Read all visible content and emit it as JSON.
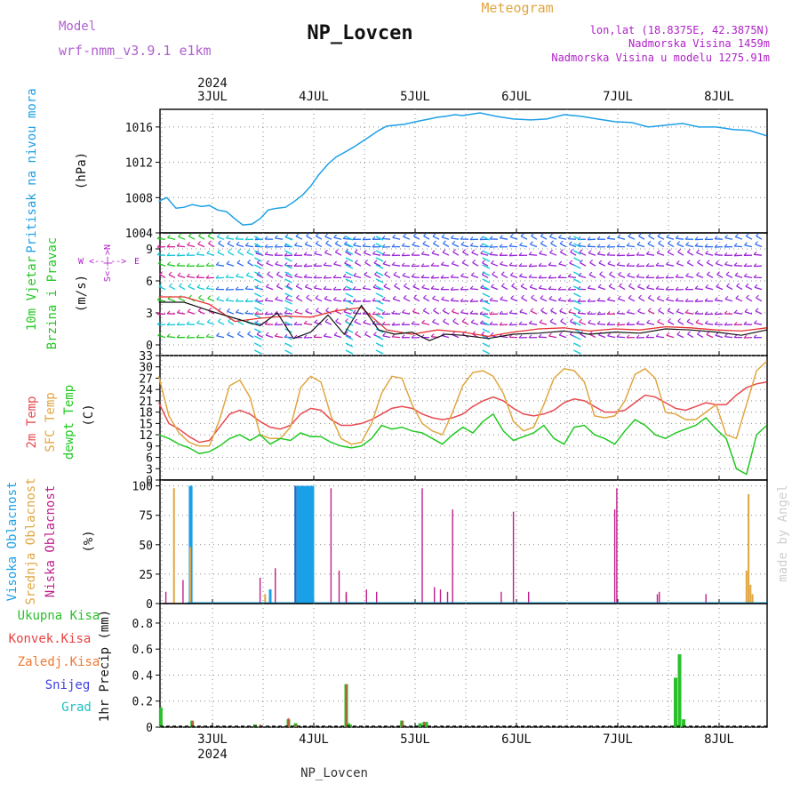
{
  "header": {
    "model_label": "Model",
    "model_name": "wrf-nmm_v3.9.1 e1km",
    "station": "NP_Lovcen",
    "meteogram": "Meteogram",
    "lonlat": "lon,lat (18.8375E, 42.3875N)",
    "altitude": "Nadmorska Visina 1459m",
    "model_altitude": "Nadmorska Visina u modelu 1275.91m",
    "year": "2024",
    "footer_station": "NP_Lovcen",
    "watermark": "made by Angel"
  },
  "colors": {
    "pressure": "#1ea0e6",
    "wind_green": "#22c822",
    "wind_cyan": "#12c8d8",
    "wind_blue": "#2a6bf0",
    "wind_violet": "#9a22d8",
    "wind_magenta": "#d0209a",
    "gust_red": "#e83030",
    "temp_2m": "#e84a50",
    "temp_sfc": "#e0a640",
    "temp_dew": "#22c822",
    "cloud_high": "#1aa0e6",
    "cloud_mid": "#e0a640",
    "cloud_low": "#c0208c",
    "precip_total": "#2ac02a",
    "precip_conv": "#e84040",
    "precip_frozen": "#f07830",
    "precip_snow": "#4040e0",
    "precip_graupel": "#20c0c0",
    "model_label": "#b060d0",
    "title_gold": "#e0a640",
    "info_violet": "#b020c8"
  },
  "chart_data": [
    {
      "type": "line",
      "panel": "pressure",
      "ylabel_name": "Pritisak na nivou mora",
      "ylabel_unit": "(hPa)",
      "x_days": [
        "3JUL",
        "4JUL",
        "5JUL",
        "6JUL",
        "7JUL",
        "8JUL"
      ],
      "x_year": "2024",
      "ylim": [
        1004,
        1018
      ],
      "yticks": [
        1004,
        1008,
        1012,
        1016
      ],
      "grid": true,
      "series": [
        {
          "x": [
            0,
            0.08,
            0.17,
            0.25,
            0.33,
            0.42,
            0.5,
            0.58,
            0.67,
            0.75,
            0.83,
            0.92,
            1.0,
            1.08,
            1.17,
            1.25,
            1.33,
            1.42,
            1.5,
            1.58,
            1.67,
            1.75,
            1.83,
            1.92,
            2.0,
            2.08,
            2.17,
            2.25,
            2.33,
            2.42,
            2.5,
            2.58,
            2.67,
            2.75,
            2.83,
            2.92,
            3.0,
            3.17,
            3.33,
            3.5,
            3.67,
            3.83,
            4.0,
            4.17,
            4.33,
            4.5,
            4.67,
            4.83,
            5.0,
            5.17,
            5.33,
            5.5,
            5.67,
            5.83,
            6.0
          ],
          "values": [
            1007.6,
            1008.0,
            1006.8,
            1006.9,
            1007.2,
            1007.0,
            1007.1,
            1006.6,
            1006.4,
            1005.6,
            1004.9,
            1005.0,
            1005.6,
            1006.6,
            1006.8,
            1006.9,
            1007.5,
            1008.3,
            1009.3,
            1010.6,
            1011.8,
            1012.6,
            1013.1,
            1013.7,
            1014.3,
            1014.9,
            1015.6,
            1016.1,
            1016.2,
            1016.3,
            1016.5,
            1016.7,
            1016.9,
            1017.1,
            1017.2,
            1017.4,
            1017.3,
            1017.6,
            1017.2,
            1016.9,
            1016.8,
            1016.9,
            1017.4,
            1017.2,
            1016.9,
            1016.6,
            1016.5,
            1016.0,
            1016.2,
            1016.4,
            1016.0,
            1016.0,
            1015.7,
            1015.6,
            1015.0
          ]
        }
      ]
    },
    {
      "type": "line",
      "panel": "wind",
      "ylabel_name1": "10m Vjetar",
      "ylabel_name2": "Brzina i Pravac",
      "ylabel_unit": "(m/s)",
      "compass_w": "W",
      "compass_e": "E",
      "compass_mid": "<--|-->",
      "compass_vert": "S<-|->N",
      "ylim": [
        -1,
        10.5
      ],
      "yticks": [
        0,
        3,
        6,
        9
      ],
      "grid": true,
      "series": [
        {
          "name": "10m wind speed",
          "x": [
            0,
            0.25,
            0.5,
            0.75,
            1.0,
            1.17,
            1.33,
            1.5,
            1.67,
            1.83,
            2.0,
            2.17,
            2.33,
            2.5,
            2.67,
            2.83,
            3.0,
            3.25,
            3.5,
            3.75,
            4.0,
            4.25,
            4.5,
            4.75,
            5.0,
            5.25,
            5.5,
            5.75,
            6.0
          ],
          "values": [
            4.0,
            4.0,
            3.2,
            2.5,
            1.8,
            3.0,
            0.6,
            1.2,
            2.8,
            1.0,
            3.7,
            1.4,
            1.0,
            1.2,
            0.4,
            1.0,
            0.9,
            0.6,
            1.0,
            1.1,
            1.3,
            1.0,
            1.2,
            1.1,
            1.5,
            1.4,
            1.2,
            0.9,
            1.4
          ]
        },
        {
          "name": "gust",
          "x": [
            0,
            0.25,
            0.5,
            0.75,
            1.0,
            1.25,
            1.5,
            1.75,
            2.0,
            2.25,
            2.5,
            2.75,
            3.0,
            3.25,
            3.5,
            3.75,
            4.0,
            4.25,
            4.5,
            4.75,
            5.0,
            5.25,
            5.5,
            5.75,
            6.0
          ],
          "values": [
            4.5,
            4.5,
            3.8,
            2.2,
            2.5,
            2.7,
            2.6,
            3.2,
            3.5,
            1.4,
            1.0,
            1.4,
            1.2,
            0.8,
            1.2,
            1.5,
            1.6,
            1.3,
            1.5,
            1.4,
            1.7,
            1.6,
            1.4,
            1.3,
            1.6
          ]
        }
      ]
    },
    {
      "type": "line",
      "panel": "temperature",
      "ylabel_2m": "2m Temp",
      "ylabel_sfc": "SFC Temp",
      "ylabel_dew": "dewpt Temp",
      "ylabel_unit": "(C)",
      "ylim": [
        0,
        33
      ],
      "yticks": [
        0,
        3,
        6,
        9,
        12,
        15,
        18,
        21,
        24,
        27,
        30,
        33
      ],
      "grid": true,
      "series": [
        {
          "name": "2m Temp",
          "x": [
            0,
            0.1,
            0.2,
            0.3,
            0.4,
            0.5,
            0.6,
            0.7,
            0.8,
            0.9,
            1.0,
            1.1,
            1.2,
            1.3,
            1.4,
            1.5,
            1.6,
            1.7,
            1.8,
            1.9,
            2.0,
            2.1,
            2.2,
            2.3,
            2.4,
            2.5,
            2.6,
            2.7,
            2.8,
            2.9,
            3.0,
            3.1,
            3.2,
            3.3,
            3.4,
            3.5,
            3.6,
            3.7,
            3.8,
            3.9,
            4.0,
            4.1,
            4.2,
            4.3,
            4.4,
            4.5,
            4.6,
            4.7,
            4.8,
            4.9,
            5.0,
            5.1,
            5.2,
            5.3,
            5.4,
            5.5,
            5.6,
            5.7,
            5.8,
            5.9,
            6.0
          ],
          "values": [
            20.5,
            15.0,
            13.5,
            11.5,
            10.0,
            10.5,
            14.0,
            17.5,
            18.5,
            17.5,
            15.5,
            14.0,
            13.5,
            14.5,
            17.5,
            19.0,
            18.5,
            16.0,
            14.5,
            14.5,
            15.0,
            16.0,
            17.5,
            19.0,
            19.5,
            19.0,
            17.5,
            16.5,
            16.0,
            16.5,
            17.5,
            19.5,
            21.0,
            22.0,
            21.0,
            19.0,
            17.5,
            17.0,
            17.5,
            18.5,
            20.5,
            21.5,
            21.0,
            19.5,
            18.0,
            18.0,
            18.5,
            20.5,
            22.5,
            22.0,
            20.5,
            19.0,
            18.5,
            19.5,
            20.5,
            20.0,
            20.0,
            22.5,
            24.5,
            25.5,
            26.0
          ]
        },
        {
          "name": "SFC Temp",
          "x": [
            0,
            0.1,
            0.2,
            0.3,
            0.4,
            0.5,
            0.6,
            0.7,
            0.8,
            0.9,
            1.0,
            1.1,
            1.2,
            1.3,
            1.4,
            1.5,
            1.6,
            1.7,
            1.8,
            1.9,
            2.0,
            2.1,
            2.2,
            2.3,
            2.4,
            2.5,
            2.6,
            2.7,
            2.8,
            2.9,
            3.0,
            3.1,
            3.2,
            3.3,
            3.4,
            3.5,
            3.6,
            3.7,
            3.8,
            3.9,
            4.0,
            4.1,
            4.2,
            4.3,
            4.4,
            4.5,
            4.6,
            4.7,
            4.8,
            4.9,
            5.0,
            5.1,
            5.2,
            5.3,
            5.4,
            5.5,
            5.6,
            5.7,
            5.8,
            5.9,
            6.0
          ],
          "values": [
            27.5,
            17.0,
            12.5,
            10.0,
            9.0,
            9.0,
            16.0,
            25.0,
            26.5,
            22.0,
            12.0,
            11.0,
            11.0,
            14.0,
            24.5,
            27.5,
            26.0,
            17.0,
            11.0,
            9.5,
            10.0,
            15.0,
            23.0,
            27.5,
            27.0,
            20.0,
            15.0,
            13.0,
            12.0,
            18.0,
            25.0,
            28.5,
            29.0,
            27.5,
            23.0,
            15.5,
            13.0,
            14.0,
            20.0,
            27.0,
            29.5,
            29.0,
            26.0,
            17.0,
            16.5,
            17.0,
            21.0,
            28.0,
            29.5,
            27.0,
            18.0,
            17.5,
            16.0,
            16.0,
            18.0,
            20.0,
            12.0,
            11.0,
            20.0,
            29.0,
            31.5
          ]
        },
        {
          "name": "dewpt Temp",
          "x": [
            0,
            0.1,
            0.2,
            0.3,
            0.4,
            0.5,
            0.6,
            0.7,
            0.8,
            0.9,
            1.0,
            1.1,
            1.2,
            1.3,
            1.4,
            1.5,
            1.6,
            1.7,
            1.8,
            1.9,
            2.0,
            2.1,
            2.2,
            2.3,
            2.4,
            2.5,
            2.6,
            2.7,
            2.8,
            2.9,
            3.0,
            3.1,
            3.2,
            3.3,
            3.4,
            3.5,
            3.6,
            3.7,
            3.8,
            3.9,
            4.0,
            4.1,
            4.2,
            4.3,
            4.4,
            4.5,
            4.6,
            4.7,
            4.8,
            4.9,
            5.0,
            5.1,
            5.2,
            5.3,
            5.4,
            5.5,
            5.6,
            5.7,
            5.8,
            5.9,
            6.0
          ],
          "values": [
            12.0,
            11.0,
            9.5,
            8.5,
            7.0,
            7.5,
            9.0,
            11.0,
            12.0,
            10.5,
            12.0,
            9.5,
            11.0,
            10.5,
            12.5,
            11.5,
            11.5,
            10.0,
            9.0,
            8.5,
            9.0,
            11.0,
            14.5,
            13.5,
            14.0,
            13.0,
            12.5,
            11.0,
            9.5,
            12.0,
            14.0,
            12.5,
            15.5,
            17.5,
            13.0,
            10.5,
            11.5,
            12.5,
            14.5,
            11.0,
            9.5,
            14.0,
            14.5,
            12.0,
            11.0,
            9.5,
            13.0,
            16.0,
            14.5,
            12.0,
            11.0,
            12.5,
            13.5,
            14.5,
            16.5,
            13.5,
            11.0,
            3.0,
            1.5,
            12.0,
            14.5
          ]
        }
      ]
    },
    {
      "type": "bar",
      "panel": "clouds",
      "ylabel_high": "Visoka Oblacnost",
      "ylabel_mid": "Srednja Oblacnost",
      "ylabel_low": "Niska Oblacnost",
      "ylabel_unit": "(%)",
      "ylim": [
        0,
        105
      ],
      "yticks": [
        0,
        25,
        50,
        75,
        100
      ],
      "grid": true,
      "series": [
        {
          "name": "Visoka Oblacnost",
          "x": [
            0.31,
            0.32,
            1.1,
            1.35,
            1.36,
            1.38,
            1.4,
            1.42,
            1.44,
            1.46,
            1.48,
            1.5,
            1.52
          ],
          "values": [
            100,
            100,
            12,
            100,
            100,
            100,
            100,
            100,
            100,
            100,
            100,
            100,
            100
          ]
        },
        {
          "name": "Srednja Oblacnost",
          "x": [
            0.15,
            0.31,
            1.05,
            1.85,
            5.8,
            5.82,
            5.84,
            5.86
          ],
          "values": [
            98,
            48,
            8,
            8,
            28,
            93,
            16,
            8
          ]
        },
        {
          "name": "Niska Oblacnost",
          "x": [
            0.07,
            0.24,
            1.0,
            1.15,
            1.35,
            1.7,
            1.78,
            1.85,
            2.05,
            2.15,
            2.6,
            2.72,
            2.78,
            2.85,
            2.9,
            3.38,
            3.5,
            3.65,
            4.5,
            4.52,
            4.92,
            4.94,
            5.4
          ],
          "values": [
            10,
            20,
            22,
            30,
            100,
            98,
            28,
            10,
            12,
            10,
            98,
            14,
            12,
            10,
            80,
            10,
            78,
            10,
            80,
            98,
            8,
            10,
            8
          ]
        }
      ]
    },
    {
      "type": "bar",
      "panel": "precipitation",
      "ylabel_total": "Ukupna Kisa",
      "ylabel_conv": "Konvek.Kisa",
      "ylabel_frozen": "Zaledj.Kisa",
      "ylabel_snow": "Snijeg",
      "ylabel_graupel": "Grad",
      "ylabel_unit": "1hr Precip (mm)",
      "ylim": [
        0,
        0.95
      ],
      "yticks": [
        0,
        0.2,
        0.4,
        0.6,
        0.8
      ],
      "grid": true,
      "series": [
        {
          "name": "Ukupna Kisa",
          "x": [
            0.02,
            0.33,
            0.95,
            1.28,
            1.35,
            1.85,
            1.87,
            1.89,
            2.4,
            2.58,
            2.62,
            2.64,
            5.1,
            5.14,
            5.18
          ],
          "values": [
            0.15,
            0.05,
            0.02,
            0.06,
            0.03,
            0.33,
            0.03,
            0.02,
            0.05,
            0.03,
            0.04,
            0.04,
            0.38,
            0.56,
            0.06
          ]
        },
        {
          "name": "Konvek.Kisa",
          "x": [
            0.33,
            1.0,
            1.28,
            1.35,
            1.85,
            2.4,
            2.62
          ],
          "values": [
            0.05,
            0.02,
            0.07,
            0.02,
            0.33,
            0.05,
            0.04
          ]
        }
      ]
    }
  ]
}
